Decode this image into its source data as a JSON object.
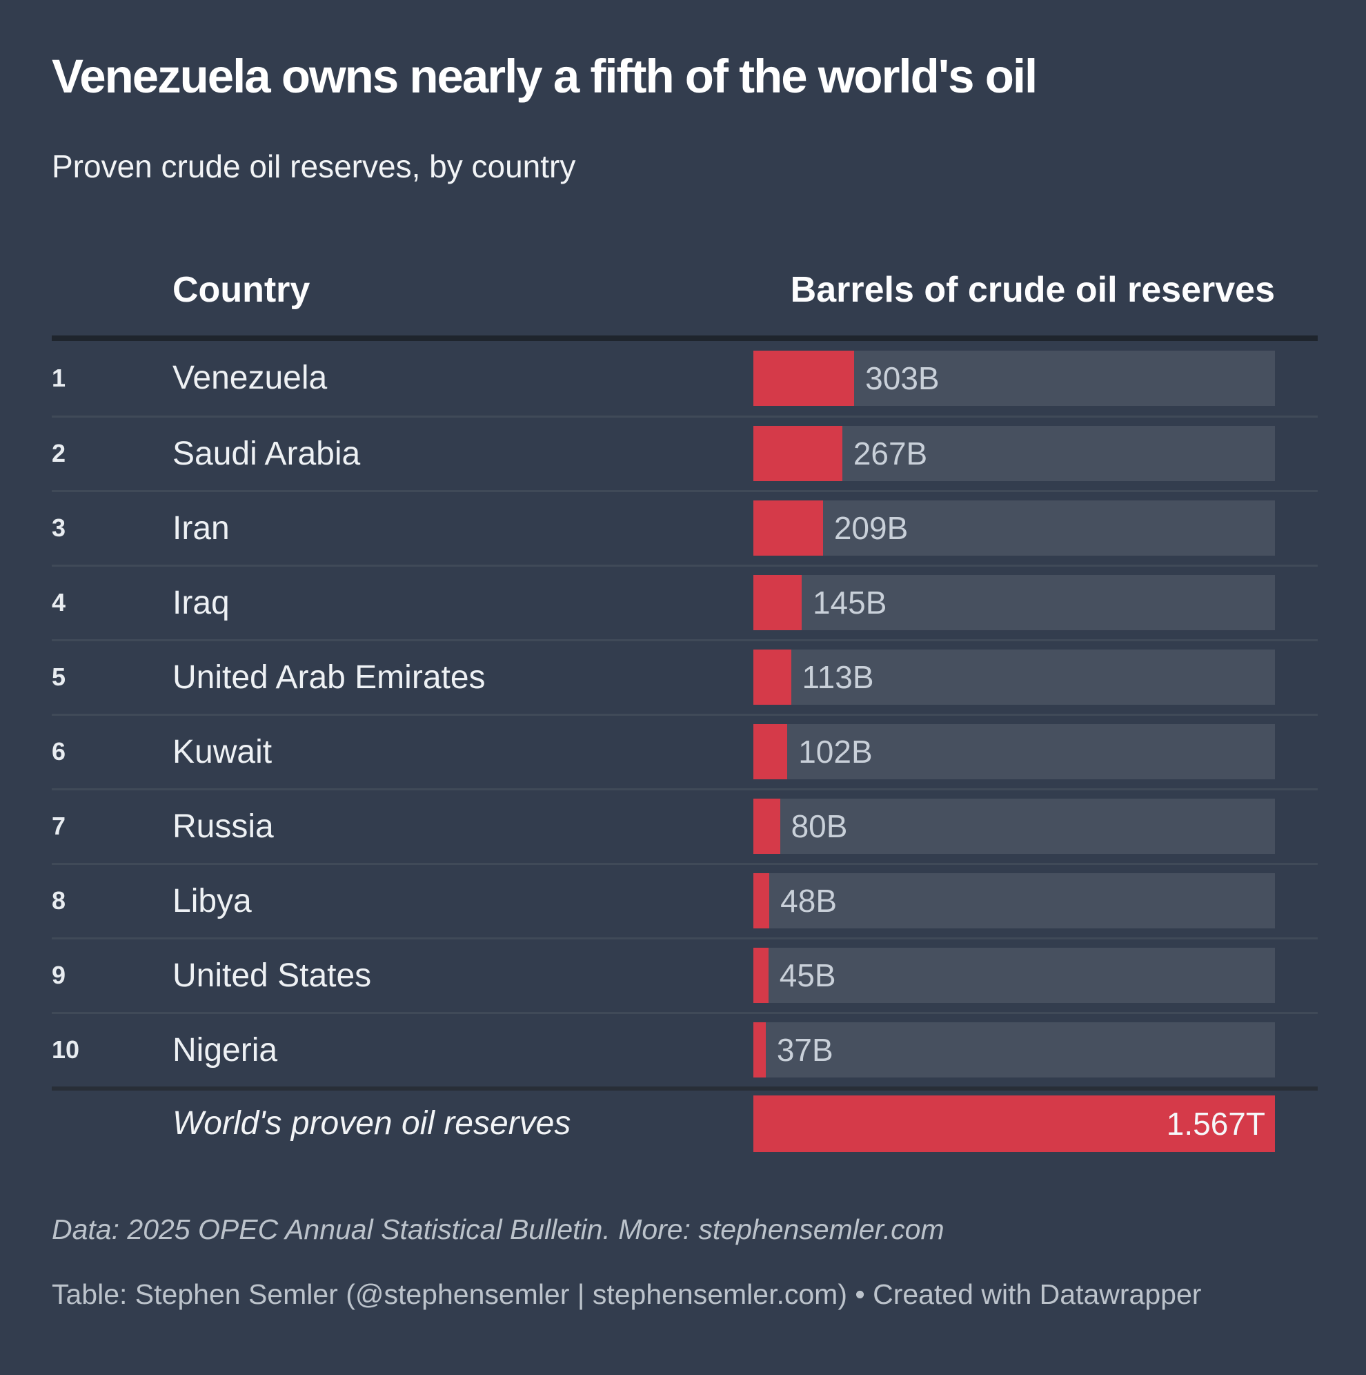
{
  "header": {
    "title": "Venezuela owns nearly a fifth of the world's oil",
    "subtitle": "Proven crude oil reserves, by country"
  },
  "table": {
    "country_header": "Country",
    "value_header": "Barrels of crude oil reserves",
    "rows": [
      {
        "rank": "1",
        "country": "Venezuela",
        "value": 303,
        "value_label": "303B"
      },
      {
        "rank": "2",
        "country": "Saudi Arabia",
        "value": 267,
        "value_label": "267B"
      },
      {
        "rank": "3",
        "country": "Iran",
        "value": 209,
        "value_label": "209B"
      },
      {
        "rank": "4",
        "country": "Iraq",
        "value": 145,
        "value_label": "145B"
      },
      {
        "rank": "5",
        "country": "United Arab Emirates",
        "value": 113,
        "value_label": "113B"
      },
      {
        "rank": "6",
        "country": "Kuwait",
        "value": 102,
        "value_label": "102B"
      },
      {
        "rank": "7",
        "country": "Russia",
        "value": 80,
        "value_label": "80B"
      },
      {
        "rank": "8",
        "country": "Libya",
        "value": 48,
        "value_label": "48B"
      },
      {
        "rank": "9",
        "country": "United States",
        "value": 45,
        "value_label": "45B"
      },
      {
        "rank": "10",
        "country": "Nigeria",
        "value": 37,
        "value_label": "37B"
      }
    ],
    "total_row": {
      "label": "World's proven oil reserves",
      "value": 1567,
      "value_label": "1.567T"
    }
  },
  "footer": {
    "source_line": "Data: 2025 OPEC Annual Statistical Bulletin. More: stephensemler.com",
    "byline": "Table: Stephen Semler (@stephensemler | stephensemler.com) • Created with Datawrapper"
  },
  "colors": {
    "background": "#333d4e",
    "bar_fill": "#d53a49",
    "bar_track": "#47505f",
    "row_separator": "#404a58",
    "header_rule": "#1f252d",
    "total_divider": "#282e37",
    "title_text": "#ffffff",
    "body_text": "#eef1f4",
    "value_text": "#c9d0d9",
    "footer_text": "#bcc3cb"
  },
  "chart_data": {
    "type": "bar",
    "orientation": "horizontal",
    "title": "Venezuela owns nearly a fifth of the world's oil",
    "subtitle": "Proven crude oil reserves, by country",
    "xlabel": "Barrels of crude oil reserves",
    "ylabel": "Country",
    "categories": [
      "Venezuela",
      "Saudi Arabia",
      "Iran",
      "Iraq",
      "United Arab Emirates",
      "Kuwait",
      "Russia",
      "Libya",
      "United States",
      "Nigeria",
      "World's proven oil reserves"
    ],
    "values": [
      303,
      267,
      209,
      145,
      113,
      102,
      80,
      48,
      45,
      37,
      1567
    ],
    "value_labels": [
      "303B",
      "267B",
      "209B",
      "145B",
      "113B",
      "102B",
      "80B",
      "48B",
      "45B",
      "37B",
      "1.567T"
    ],
    "units": "billions of barrels",
    "xlim": [
      0,
      1567
    ],
    "grid": false,
    "legend": false
  }
}
